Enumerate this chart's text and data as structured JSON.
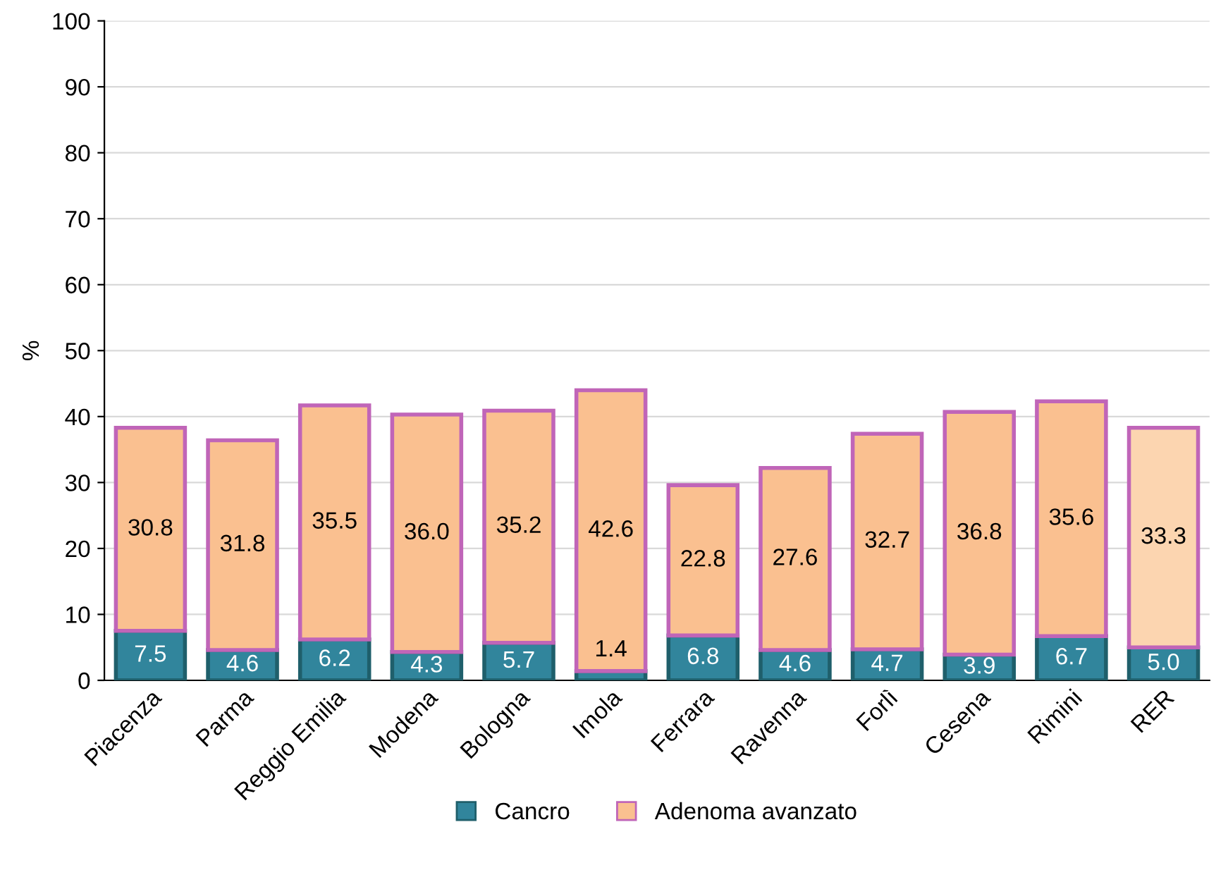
{
  "chart_data": {
    "type": "bar",
    "stacked": true,
    "ylabel": "%",
    "categories": [
      "Piacenza",
      "Parma",
      "Reggio Emilia",
      "Modena",
      "Bologna",
      "Imola",
      "Ferrara",
      "Ravenna",
      "Forlì",
      "Cesena",
      "Rimini",
      "RER"
    ],
    "series": [
      {
        "name": "Cancro",
        "color": "#31859c",
        "values": [
          7.5,
          4.6,
          6.2,
          4.3,
          5.7,
          1.4,
          6.8,
          4.6,
          4.7,
          3.9,
          6.7,
          5.0
        ],
        "value_labels": [
          "7.5",
          "4.6",
          "6.2",
          "4.3",
          "5.7",
          "1.4",
          "6.8",
          "4.6",
          "4.7",
          "3.9",
          "6.7",
          "5.0"
        ]
      },
      {
        "name": "Adenoma avanzato",
        "color": "#fac090",
        "colors": [
          "#fac090",
          "#fac090",
          "#fac090",
          "#fac090",
          "#fac090",
          "#fac090",
          "#fac090",
          "#fac090",
          "#fac090",
          "#fac090",
          "#fac090",
          "#fcd5b0"
        ],
        "values": [
          30.8,
          31.8,
          35.5,
          36.0,
          35.2,
          42.6,
          22.8,
          27.6,
          32.7,
          36.8,
          35.6,
          33.3
        ],
        "value_labels": [
          "30.8",
          "31.8",
          "35.5",
          "36.0",
          "35.2",
          "42.6",
          "22.8",
          "27.6",
          "32.7",
          "36.8",
          "35.6",
          "33.3"
        ]
      }
    ],
    "ylim": [
      0,
      100
    ],
    "yticks": [
      0,
      10,
      20,
      30,
      40,
      50,
      60,
      70,
      80,
      90,
      100
    ],
    "grid": "y",
    "legend": "bottom"
  }
}
